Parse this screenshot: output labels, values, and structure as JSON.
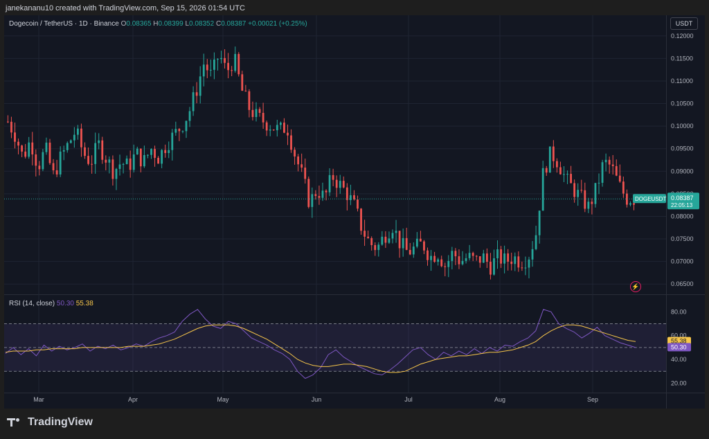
{
  "header": {
    "watermark_line": "janekananu10 created with TradingView.com, Sep 15, 2026 01:54 UTC"
  },
  "legend": {
    "symbol": "Dogecoin / TetherUS · 1D · Binance",
    "o_label": "O",
    "o_value": "0.08365",
    "h_label": "H",
    "h_value": "0.08399",
    "l_label": "L",
    "l_value": "0.08352",
    "c_label": "C",
    "c_value": "0.08387",
    "change": "+0.00021 (+0.25%)"
  },
  "currency_button": "USDT",
  "rsi_legend": {
    "label": "RSI (14, close)",
    "rsi_value": "50.30",
    "ma_value": "55.38"
  },
  "footer": {
    "brand": "TradingView"
  },
  "colors": {
    "up": "#26a69a",
    "down": "#ef5350",
    "rsi": "#7e57c2",
    "rsi_ma": "#f7c64a",
    "band_fill": "#7e57c2"
  },
  "chart_data": [
    {
      "type": "candlestick",
      "symbol": "DOGEUSDT",
      "timeframe": "1D",
      "y_ticks": [
        "0.12000",
        "0.11500",
        "0.11000",
        "0.10500",
        "0.10000",
        "0.09500",
        "0.09000",
        "0.08500",
        "0.08000",
        "0.07500",
        "0.07000",
        "0.06500"
      ],
      "ylim": [
        0.0635,
        0.1215
      ],
      "x_ticks": [
        "Mar",
        "Apr",
        "May",
        "Jun",
        "Jul",
        "Aug",
        "Sep"
      ],
      "last_price_label": "0.08387",
      "price_tag_symbol": "DOGEUSDT",
      "countdown": "22:05:13",
      "close_path": [
        [
          0,
          0.101
        ],
        [
          4,
          0.098
        ],
        [
          8,
          0.093
        ],
        [
          12,
          0.097
        ],
        [
          16,
          0.091
        ],
        [
          20,
          0.095
        ],
        [
          24,
          0.089
        ],
        [
          28,
          0.093
        ],
        [
          32,
          0.096
        ],
        [
          36,
          0.099
        ],
        [
          40,
          0.094
        ],
        [
          44,
          0.092
        ],
        [
          48,
          0.096
        ],
        [
          52,
          0.093
        ],
        [
          56,
          0.09
        ],
        [
          60,
          0.092
        ],
        [
          64,
          0.091
        ],
        [
          68,
          0.094
        ],
        [
          72,
          0.092
        ],
        [
          76,
          0.095
        ],
        [
          80,
          0.093
        ],
        [
          84,
          0.096
        ],
        [
          88,
          0.098
        ],
        [
          92,
          0.1
        ],
        [
          96,
          0.103
        ],
        [
          100,
          0.108
        ],
        [
          104,
          0.114
        ],
        [
          108,
          0.111
        ],
        [
          112,
          0.116
        ],
        [
          116,
          0.112
        ],
        [
          120,
          0.115
        ],
        [
          124,
          0.108
        ],
        [
          128,
          0.104
        ],
        [
          132,
          0.102
        ],
        [
          136,
          0.101
        ],
        [
          140,
          0.1
        ],
        [
          144,
          0.099
        ],
        [
          148,
          0.1
        ],
        [
          152,
          0.094
        ],
        [
          156,
          0.089
        ],
        [
          160,
          0.083
        ],
        [
          164,
          0.086
        ],
        [
          168,
          0.084
        ],
        [
          172,
          0.089
        ],
        [
          176,
          0.087
        ],
        [
          180,
          0.085
        ],
        [
          184,
          0.082
        ],
        [
          188,
          0.077
        ],
        [
          192,
          0.074
        ],
        [
          196,
          0.073
        ],
        [
          200,
          0.076
        ],
        [
          204,
          0.078
        ],
        [
          208,
          0.074
        ],
        [
          212,
          0.072
        ],
        [
          216,
          0.073
        ],
        [
          220,
          0.074
        ],
        [
          224,
          0.071
        ],
        [
          228,
          0.072
        ],
        [
          232,
          0.069
        ],
        [
          236,
          0.072
        ],
        [
          240,
          0.07
        ],
        [
          244,
          0.071
        ],
        [
          248,
          0.07
        ],
        [
          252,
          0.071
        ],
        [
          256,
          0.069
        ],
        [
          260,
          0.071
        ],
        [
          264,
          0.07
        ],
        [
          268,
          0.071
        ],
        [
          272,
          0.07
        ],
        [
          276,
          0.071
        ],
        [
          280,
          0.076
        ],
        [
          284,
          0.09
        ],
        [
          288,
          0.094
        ],
        [
          292,
          0.092
        ],
        [
          296,
          0.088
        ],
        [
          300,
          0.086
        ],
        [
          304,
          0.084
        ],
        [
          308,
          0.082
        ],
        [
          312,
          0.086
        ],
        [
          316,
          0.092
        ],
        [
          320,
          0.091
        ],
        [
          324,
          0.087
        ],
        [
          328,
          0.084
        ],
        [
          332,
          0.0839
        ]
      ]
    },
    {
      "type": "line",
      "title": "RSI (14, close)",
      "y_ticks": [
        "80.00",
        "60.00",
        "40.00",
        "20.00"
      ],
      "ylim": [
        15,
        86
      ],
      "band": [
        30,
        70
      ],
      "mid": 50,
      "series": [
        {
          "name": "RSI",
          "values": [
            45,
            50,
            44,
            49,
            43,
            52,
            47,
            51,
            48,
            50,
            53,
            47,
            51,
            49,
            52,
            48,
            50,
            53,
            51,
            55,
            58,
            60,
            63,
            72,
            78,
            82,
            74,
            68,
            66,
            72,
            70,
            64,
            58,
            55,
            52,
            48,
            45,
            40,
            30,
            24,
            27,
            33,
            44,
            48,
            42,
            38,
            34,
            31,
            28,
            27,
            31,
            36,
            42,
            48,
            50,
            44,
            40,
            46,
            43,
            47,
            44,
            49,
            45,
            50,
            47,
            52,
            51,
            55,
            58,
            64,
            82,
            80,
            70,
            66,
            63,
            58,
            62,
            67,
            60,
            57,
            54,
            52,
            50
          ]
        },
        {
          "name": "MA",
          "values": [
            46,
            47,
            47,
            47,
            48,
            48,
            49,
            49,
            49,
            49,
            50,
            50,
            50,
            50,
            50,
            50,
            51,
            51,
            51,
            52,
            53,
            55,
            57,
            60,
            63,
            66,
            68,
            69,
            69,
            69,
            68,
            66,
            63,
            60,
            57,
            53,
            49,
            45,
            40,
            37,
            35,
            34,
            34,
            35,
            36,
            36,
            35,
            34,
            32,
            30,
            29,
            29,
            30,
            33,
            36,
            38,
            40,
            41,
            42,
            43,
            43,
            44,
            45,
            46,
            46,
            47,
            48,
            50,
            52,
            55,
            60,
            64,
            67,
            69,
            69,
            68,
            66,
            64,
            62,
            60,
            58,
            56,
            55
          ]
        }
      ],
      "last_values": {
        "rsi": "50.30",
        "ma": "55.38"
      }
    }
  ]
}
